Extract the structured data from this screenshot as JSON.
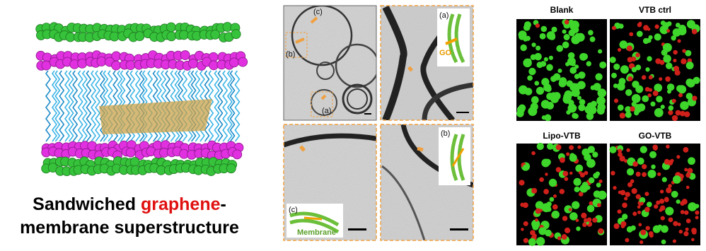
{
  "caption": {
    "line1": [
      "Sandwiched",
      "graphene",
      "-"
    ],
    "line2": "membrane superstructure"
  },
  "tem": {
    "panels": [
      {
        "labels": [
          "(c)",
          "(b)",
          "(a)"
        ]
      },
      {
        "labels": [
          "(a)",
          "GO"
        ]
      },
      {
        "labels": [
          "(c)",
          "Membrane"
        ]
      },
      {
        "labels": [
          "(b)"
        ]
      }
    ]
  },
  "fluorescence": {
    "panels": [
      {
        "label": "Blank"
      },
      {
        "label": "VTB ctrl"
      },
      {
        "label": "Lipo-VTB"
      },
      {
        "label": "GO-VTB"
      }
    ]
  }
}
